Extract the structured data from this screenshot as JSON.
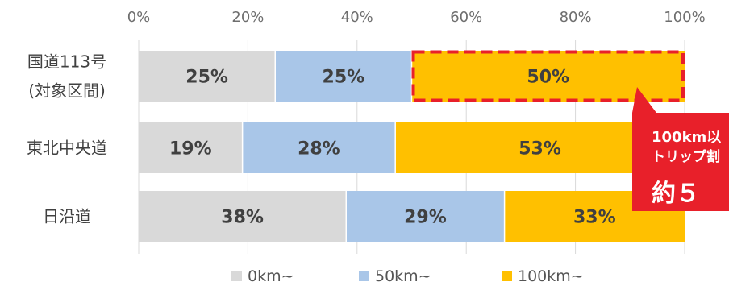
{
  "chart_data": {
    "type": "bar",
    "orientation": "horizontal",
    "stacked": true,
    "percent": true,
    "xlim": [
      0,
      100
    ],
    "xticks": [
      "0%",
      "20%",
      "40%",
      "60%",
      "80%",
      "100%"
    ],
    "categories": [
      [
        "国道113号",
        "(対象区間)"
      ],
      [
        "東北中央道"
      ],
      [
        "日沿道"
      ]
    ],
    "series": [
      {
        "name": "0km~",
        "color": "#d9d9d9",
        "values": [
          25,
          19,
          38
        ],
        "labels": [
          "25%",
          "19%",
          "38%"
        ]
      },
      {
        "name": "50km~",
        "color": "#a9c6e8",
        "values": [
          25,
          28,
          29
        ],
        "labels": [
          "25%",
          "28%",
          "29%"
        ]
      },
      {
        "name": "100km~",
        "color": "#ffc000",
        "values": [
          50,
          53,
          33
        ],
        "labels": [
          "50%",
          "53%",
          "33%"
        ]
      }
    ],
    "grid": true,
    "legend": "bottom",
    "highlight": {
      "category_index": 0,
      "series_index": 2,
      "color": "#e8202a"
    },
    "callout": {
      "lines": [
        "100km以",
        "トリップ割",
        "約５"
      ],
      "color": "#e8202a"
    }
  }
}
